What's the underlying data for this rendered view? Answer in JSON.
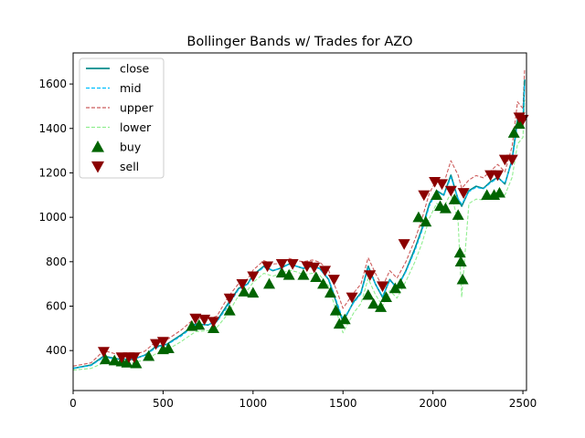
{
  "chart_data": {
    "type": "line",
    "title": "Bollinger Bands w/ Trades for AZO",
    "xlabel": "",
    "ylabel": "",
    "xlim": [
      0,
      2520
    ],
    "ylim": [
      220,
      1740
    ],
    "x_ticks": [
      0,
      500,
      1000,
      1500,
      2000,
      2500
    ],
    "y_ticks": [
      400,
      600,
      800,
      1000,
      1200,
      1400,
      1600
    ],
    "grid": false,
    "legend_position": "top-left",
    "x": [
      0,
      100,
      170,
      250,
      330,
      400,
      460,
      520,
      600,
      680,
      750,
      800,
      860,
      920,
      970,
      1000,
      1060,
      1110,
      1150,
      1200,
      1240,
      1280,
      1330,
      1370,
      1420,
      1470,
      1500,
      1560,
      1600,
      1640,
      1680,
      1720,
      1760,
      1800,
      1850,
      1900,
      1940,
      1980,
      2020,
      2060,
      2100,
      2140,
      2160,
      2200,
      2240,
      2280,
      2320,
      2360,
      2400,
      2440,
      2470,
      2500,
      2510
    ],
    "series": [
      {
        "name": "close",
        "color": "#008b8b",
        "style": "solid",
        "values": [
          320,
          335,
          375,
          362,
          360,
          380,
          418,
          428,
          470,
          520,
          515,
          535,
          610,
          680,
          700,
          740,
          780,
          760,
          770,
          790,
          780,
          770,
          780,
          770,
          720,
          600,
          530,
          620,
          660,
          780,
          700,
          640,
          720,
          680,
          760,
          860,
          950,
          1060,
          1120,
          1100,
          1190,
          1080,
          1050,
          1120,
          1140,
          1130,
          1160,
          1180,
          1150,
          1260,
          1440,
          1420,
          1620
        ]
      },
      {
        "name": "mid",
        "color": "#00bfff",
        "style": "dashed",
        "values": [
          320,
          332,
          370,
          360,
          362,
          378,
          412,
          425,
          465,
          515,
          516,
          530,
          600,
          675,
          698,
          735,
          775,
          762,
          768,
          788,
          780,
          772,
          778,
          768,
          725,
          610,
          540,
          615,
          655,
          770,
          700,
          645,
          715,
          682,
          755,
          850,
          940,
          1050,
          1115,
          1098,
          1180,
          1085,
          1060,
          1115,
          1135,
          1128,
          1155,
          1175,
          1155,
          1250,
          1420,
          1425,
          1600
        ]
      },
      {
        "name": "upper",
        "color": "#cd5c5c",
        "style": "dashed",
        "values": [
          330,
          345,
          400,
          382,
          378,
          398,
          440,
          448,
          492,
          548,
          540,
          556,
          640,
          702,
          722,
          762,
          805,
          790,
          792,
          815,
          805,
          800,
          808,
          798,
          762,
          660,
          590,
          660,
          700,
          818,
          748,
          688,
          760,
          726,
          800,
          900,
          995,
          1108,
          1168,
          1152,
          1255,
          1190,
          1130,
          1168,
          1188,
          1178,
          1208,
          1238,
          1205,
          1320,
          1520,
          1490,
          1670
        ]
      },
      {
        "name": "lower",
        "color": "#90ee90",
        "style": "dashed",
        "values": [
          312,
          320,
          345,
          340,
          345,
          358,
          385,
          402,
          440,
          485,
          490,
          505,
          565,
          648,
          672,
          706,
          748,
          735,
          745,
          762,
          755,
          742,
          748,
          740,
          690,
          560,
          480,
          570,
          612,
          725,
          652,
          600,
          670,
          636,
          712,
          800,
          885,
          995,
          1062,
          1045,
          1110,
          980,
          640,
          1062,
          1082,
          1078,
          1102,
          1112,
          1100,
          1180,
          1330,
          1360,
          1530
        ]
      },
      {
        "name": "buy",
        "color": "#006400",
        "marker": "triangle-up",
        "points": [
          [
            180,
            360
          ],
          [
            230,
            355
          ],
          [
            270,
            350
          ],
          [
            300,
            345
          ],
          [
            350,
            342
          ],
          [
            420,
            375
          ],
          [
            500,
            405
          ],
          [
            530,
            410
          ],
          [
            660,
            510
          ],
          [
            700,
            515
          ],
          [
            780,
            500
          ],
          [
            870,
            580
          ],
          [
            950,
            665
          ],
          [
            1000,
            660
          ],
          [
            1090,
            700
          ],
          [
            1160,
            750
          ],
          [
            1200,
            740
          ],
          [
            1280,
            740
          ],
          [
            1350,
            730
          ],
          [
            1390,
            700
          ],
          [
            1430,
            660
          ],
          [
            1460,
            580
          ],
          [
            1480,
            520
          ],
          [
            1510,
            540
          ],
          [
            1640,
            650
          ],
          [
            1670,
            610
          ],
          [
            1710,
            595
          ],
          [
            1740,
            640
          ],
          [
            1790,
            680
          ],
          [
            1820,
            700
          ],
          [
            1920,
            1000
          ],
          [
            1960,
            980
          ],
          [
            2020,
            1100
          ],
          [
            2040,
            1050
          ],
          [
            2070,
            1040
          ],
          [
            2120,
            1080
          ],
          [
            2140,
            1010
          ],
          [
            2150,
            840
          ],
          [
            2155,
            800
          ],
          [
            2165,
            720
          ],
          [
            2300,
            1100
          ],
          [
            2340,
            1100
          ],
          [
            2370,
            1110
          ],
          [
            2450,
            1380
          ],
          [
            2480,
            1420
          ]
        ]
      },
      {
        "name": "sell",
        "color": "#8b0000",
        "marker": "triangle-down",
        "points": [
          [
            170,
            395
          ],
          [
            270,
            370
          ],
          [
            310,
            370
          ],
          [
            340,
            370
          ],
          [
            460,
            430
          ],
          [
            500,
            440
          ],
          [
            680,
            545
          ],
          [
            730,
            540
          ],
          [
            780,
            530
          ],
          [
            870,
            635
          ],
          [
            940,
            700
          ],
          [
            1000,
            735
          ],
          [
            1080,
            780
          ],
          [
            1160,
            790
          ],
          [
            1220,
            790
          ],
          [
            1300,
            780
          ],
          [
            1340,
            775
          ],
          [
            1400,
            760
          ],
          [
            1450,
            720
          ],
          [
            1550,
            640
          ],
          [
            1650,
            740
          ],
          [
            1720,
            690
          ],
          [
            1840,
            880
          ],
          [
            1950,
            1100
          ],
          [
            2010,
            1160
          ],
          [
            2050,
            1150
          ],
          [
            2100,
            1120
          ],
          [
            2170,
            1110
          ],
          [
            2320,
            1190
          ],
          [
            2360,
            1190
          ],
          [
            2400,
            1260
          ],
          [
            2440,
            1260
          ],
          [
            2480,
            1450
          ],
          [
            2500,
            1440
          ]
        ]
      }
    ]
  }
}
